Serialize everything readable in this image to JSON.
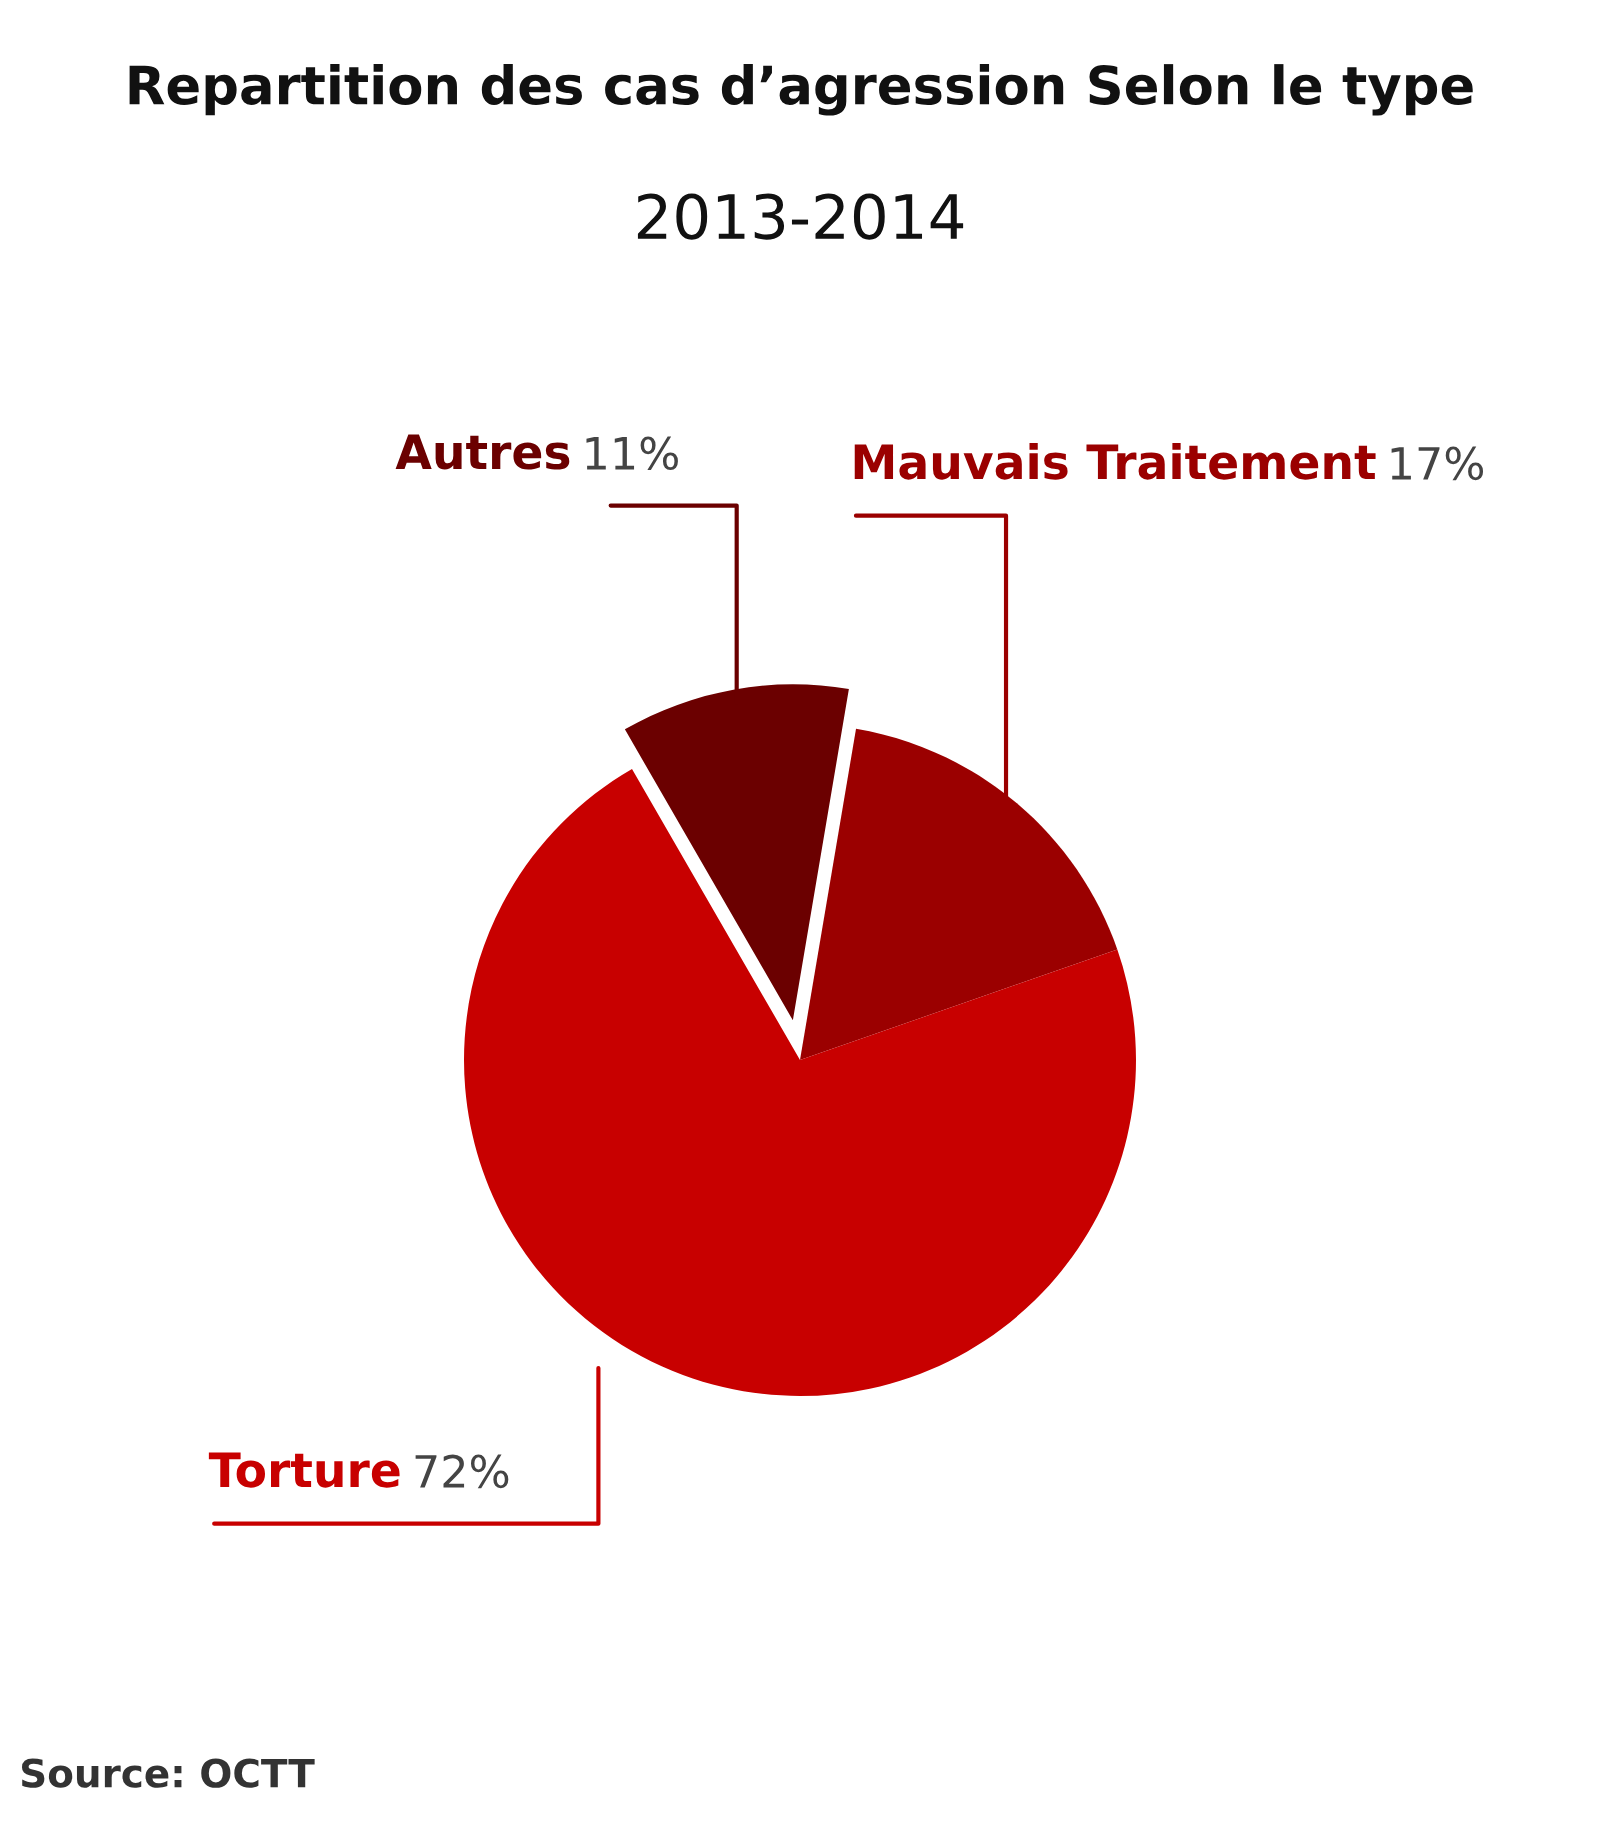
{
  "chart_data": {
    "type": "pie",
    "title": "Repartition des cas d’agression Selon le type",
    "subtitle": "2013-2014",
    "categories": [
      "Autres",
      "Mauvais Traitement",
      "Torture"
    ],
    "values": [
      11,
      17,
      72
    ],
    "value_labels": [
      "11%",
      "17%",
      "72%"
    ],
    "colors": [
      "#6b0000",
      "#9b0000",
      "#c80000"
    ],
    "annotations": [
      "Source: OCTT"
    ],
    "legend": false
  }
}
